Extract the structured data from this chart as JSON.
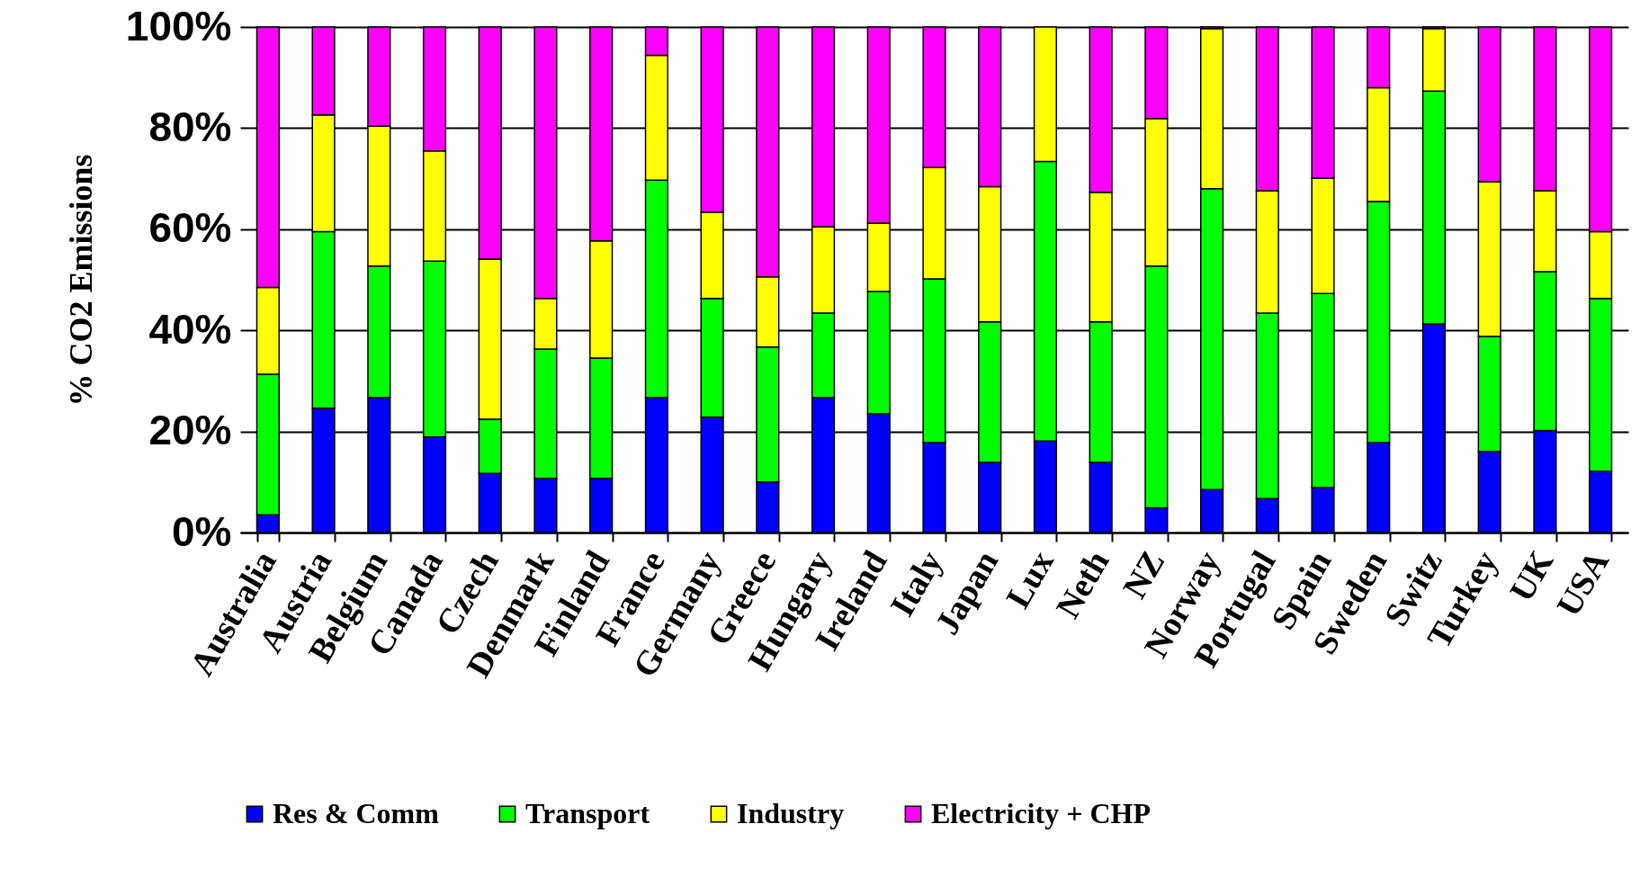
{
  "chart_data": {
    "type": "bar",
    "stacked": true,
    "ylabel": "% CO2 Emissions",
    "categories": [
      "Australia",
      "Austria",
      "Belgium",
      "Canada",
      "Czech",
      "Denmark",
      "Finland",
      "France",
      "Germany",
      "Greece",
      "Hungary",
      "Ireland",
      "Italy",
      "Japan",
      "Lux",
      "Neth",
      "NZ",
      "Norway",
      "Portugal",
      "Spain",
      "Sweden",
      "Switz",
      "Turkey",
      "UK",
      "USA"
    ],
    "series": [
      {
        "name": "Res & Comm",
        "color": "#0000ff",
        "values": [
          3.5,
          24.6,
          26.7,
          18.9,
          11.7,
          10.7,
          10.7,
          26.7,
          22.8,
          10.0,
          26.7,
          23.5,
          17.8,
          13.9,
          18.1,
          13.9,
          4.9,
          8.5,
          6.7,
          8.9,
          17.8,
          41.3,
          16.0,
          20.2,
          12.1
        ]
      },
      {
        "name": "Transport",
        "color": "#00ff00",
        "values": [
          27.8,
          34.9,
          26.0,
          34.8,
          10.7,
          25.6,
          23.8,
          43.0,
          23.5,
          26.7,
          16.7,
          24.2,
          32.4,
          27.8,
          55.3,
          27.8,
          47.8,
          59.5,
          36.7,
          38.4,
          47.7,
          46.0,
          22.8,
          31.4,
          34.2
        ]
      },
      {
        "name": "Industry",
        "color": "#ffff00",
        "values": [
          17.2,
          23.1,
          27.7,
          21.8,
          31.7,
          10.0,
          23.2,
          24.7,
          17.1,
          13.9,
          17.1,
          13.5,
          22.0,
          26.7,
          26.6,
          25.6,
          29.2,
          31.7,
          24.2,
          22.8,
          22.5,
          12.4,
          30.6,
          16.0,
          13.2
        ]
      },
      {
        "name": "Electricity + CHP",
        "color": "#ff00ff",
        "values": [
          51.5,
          17.4,
          19.6,
          24.5,
          45.9,
          53.7,
          42.3,
          5.6,
          36.6,
          49.4,
          39.5,
          38.8,
          27.8,
          31.6,
          null,
          32.7,
          18.1,
          0.3,
          32.4,
          29.9,
          12.0,
          0.3,
          30.6,
          32.4,
          40.5
        ]
      }
    ],
    "ylim": [
      0,
      100
    ],
    "yticks": [
      {
        "value": 0,
        "label": "0%"
      },
      {
        "value": 20,
        "label": "20%"
      },
      {
        "value": 40,
        "label": "40%"
      },
      {
        "value": 60,
        "label": "60%"
      },
      {
        "value": 80,
        "label": "80%"
      },
      {
        "value": 100,
        "label": "100%"
      }
    ],
    "grid": "y",
    "legend": "bottom"
  }
}
